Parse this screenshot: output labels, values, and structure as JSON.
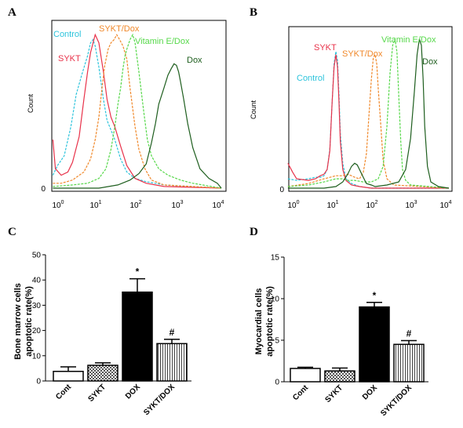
{
  "colors": {
    "control": "#2ec4dc",
    "sykt": "#e8324a",
    "sykt_dox": "#f0882a",
    "vitamin_e_dox": "#56d84a",
    "dox": "#1e5e1e",
    "bar_edge": "#000000"
  },
  "chart_data": [
    {
      "panel": "A",
      "type": "line",
      "ylabel": "Count",
      "y_zero_label": "0",
      "xscale": "log",
      "xticks": [
        {
          "base": "10",
          "exp": "0"
        },
        {
          "base": "10",
          "exp": "1"
        },
        {
          "base": "10",
          "exp": "2"
        },
        {
          "base": "10",
          "exp": "3"
        },
        {
          "base": "10",
          "exp": "4"
        }
      ],
      "series": [
        {
          "name": "Control",
          "color_key": "control",
          "x": [
            0.6,
            0.8,
            1.2,
            1.8,
            2.5,
            3.5,
            5,
            6,
            7,
            8,
            10,
            13,
            16,
            20,
            25,
            35,
            50,
            80,
            150,
            400,
            10000
          ],
          "y": [
            8,
            14,
            20,
            38,
            58,
            70,
            82,
            90,
            92,
            88,
            75,
            55,
            42,
            36,
            30,
            18,
            10,
            6,
            4,
            2,
            0
          ]
        },
        {
          "name": "SYKT",
          "color_key": "sykt",
          "x": [
            0.6,
            0.7,
            1,
            1.5,
            2,
            3,
            4,
            5,
            6,
            7,
            8,
            10,
            13,
            16,
            20,
            25,
            35,
            50,
            80,
            150,
            400,
            10000
          ],
          "y": [
            30,
            12,
            8,
            10,
            16,
            32,
            55,
            72,
            84,
            90,
            95,
            90,
            72,
            55,
            44,
            38,
            26,
            14,
            6,
            3,
            1,
            0
          ]
        },
        {
          "name": "SYKT/Dox",
          "color_key": "sykt_dox",
          "x": [
            0.6,
            1,
            2,
            4,
            6,
            8,
            10,
            12,
            14,
            17,
            20,
            24,
            28,
            33,
            40,
            50,
            60,
            80,
            100,
            140,
            200,
            400,
            10000
          ],
          "y": [
            3,
            3,
            5,
            10,
            18,
            30,
            44,
            62,
            76,
            86,
            90,
            92,
            95,
            92,
            88,
            80,
            62,
            38,
            24,
            12,
            5,
            2,
            0
          ]
        },
        {
          "name": "Vitamin E/Dox",
          "color_key": "vitamin_e_dox",
          "x": [
            0.6,
            2,
            5,
            10,
            15,
            20,
            25,
            30,
            35,
            40,
            45,
            50,
            60,
            70,
            80,
            100,
            130,
            160,
            200,
            300,
            500,
            1000,
            2000,
            10000
          ],
          "y": [
            1,
            2,
            3,
            6,
            12,
            24,
            38,
            52,
            62,
            74,
            82,
            86,
            92,
            95,
            90,
            72,
            48,
            30,
            20,
            12,
            8,
            5,
            3,
            0
          ]
        },
        {
          "name": "Dox",
          "color_key": "dox",
          "x": [
            0.6,
            2,
            10,
            30,
            60,
            100,
            150,
            200,
            250,
            300,
            400,
            500,
            600,
            700,
            800,
            900,
            1000,
            1200,
            1500,
            2000,
            3000,
            5000,
            8000,
            10000
          ],
          "y": [
            0,
            0,
            0,
            2,
            5,
            9,
            15,
            28,
            40,
            52,
            62,
            70,
            74,
            77,
            76,
            72,
            66,
            55,
            40,
            25,
            12,
            6,
            3,
            0
          ]
        }
      ]
    },
    {
      "panel": "B",
      "type": "line",
      "ylabel": "Count",
      "y_zero_label": "0",
      "xscale": "log",
      "xticks": [
        {
          "base": "10",
          "exp": "0"
        },
        {
          "base": "10",
          "exp": "1"
        },
        {
          "base": "10",
          "exp": "2"
        },
        {
          "base": "10",
          "exp": "3"
        },
        {
          "base": "10",
          "exp": "4"
        }
      ],
      "series": [
        {
          "name": "Control",
          "color_key": "control",
          "x": [
            0.6,
            1,
            2,
            3,
            4,
            5,
            6,
            7,
            8,
            9,
            10,
            11,
            12,
            13,
            15,
            18,
            25,
            40,
            80,
            10000
          ],
          "y": [
            6,
            5,
            6,
            7,
            7,
            8,
            12,
            25,
            55,
            80,
            88,
            82,
            60,
            35,
            16,
            6,
            3,
            1,
            0,
            0
          ]
        },
        {
          "name": "SYKT",
          "color_key": "sykt",
          "x": [
            0.6,
            0.8,
            1,
            2,
            3,
            4,
            5,
            6,
            7,
            8,
            9,
            10,
            11,
            12,
            13,
            15,
            18,
            25,
            40,
            80,
            10000
          ],
          "y": [
            16,
            10,
            6,
            5,
            6,
            8,
            9,
            12,
            24,
            55,
            78,
            86,
            78,
            55,
            30,
            12,
            5,
            2,
            1,
            0,
            0
          ]
        },
        {
          "name": "SYKT/Dox",
          "color_key": "sykt_dox",
          "x": [
            0.6,
            2,
            5,
            10,
            15,
            20,
            25,
            30,
            40,
            50,
            60,
            70,
            80,
            90,
            100,
            110,
            120,
            140,
            160,
            200,
            300,
            10000
          ],
          "y": [
            1,
            3,
            6,
            8,
            8,
            9,
            8,
            7,
            6,
            10,
            22,
            48,
            70,
            84,
            86,
            80,
            64,
            40,
            18,
            6,
            2,
            0
          ]
        },
        {
          "name": "Vitamin E/Dox",
          "color_key": "vitamin_e_dox",
          "x": [
            0.6,
            2,
            5,
            10,
            15,
            20,
            30,
            50,
            80,
            120,
            160,
            200,
            240,
            280,
            320,
            360,
            400,
            450,
            500,
            600,
            800,
            10000
          ],
          "y": [
            1,
            2,
            4,
            6,
            6,
            5,
            5,
            4,
            4,
            6,
            14,
            40,
            74,
            92,
            96,
            88,
            60,
            30,
            12,
            5,
            2,
            0
          ]
        },
        {
          "name": "Dox",
          "color_key": "dox",
          "x": [
            0.6,
            5,
            10,
            15,
            20,
            25,
            30,
            35,
            40,
            50,
            60,
            80,
            100,
            200,
            400,
            600,
            800,
            1000,
            1200,
            1400,
            1600,
            1800,
            2000,
            2400,
            3000,
            5000,
            10000
          ],
          "y": [
            0,
            0,
            1,
            4,
            9,
            14,
            16,
            15,
            12,
            7,
            3,
            2,
            1,
            2,
            4,
            12,
            32,
            62,
            86,
            96,
            92,
            70,
            40,
            14,
            4,
            1,
            0
          ]
        }
      ]
    },
    {
      "panel": "C",
      "type": "bar",
      "ylabel_lines": [
        "Bone marrow cells",
        "apoptotic rate(%)"
      ],
      "categories": [
        "Cont",
        "SYKT",
        "DOX",
        "SYKT/DOX"
      ],
      "values": [
        3.8,
        6.2,
        35.2,
        14.8
      ],
      "errors": [
        1.8,
        1.0,
        5.3,
        1.7
      ],
      "patterns": [
        "white",
        "checker",
        "black",
        "vstripe"
      ],
      "annotations": [
        "",
        "",
        "*",
        "#"
      ],
      "ylim": [
        0,
        50
      ],
      "yticks": [
        0,
        10,
        20,
        30,
        40,
        50
      ]
    },
    {
      "panel": "D",
      "type": "bar",
      "ylabel_lines": [
        "Myocardial cells",
        "apoptotic rate(%)"
      ],
      "categories": [
        "Cont",
        "SYKT",
        "DOX",
        "SYKT/DOX"
      ],
      "values": [
        1.6,
        1.3,
        9.0,
        4.5
      ],
      "errors": [
        0.15,
        0.35,
        0.55,
        0.45
      ],
      "patterns": [
        "white",
        "checker",
        "black",
        "vstripe"
      ],
      "annotations": [
        "",
        "",
        "*",
        "#"
      ],
      "ylim": [
        0,
        15
      ],
      "yticks": [
        0,
        5,
        10,
        15
      ]
    }
  ],
  "legend_labels": {
    "A": [
      {
        "key": "control",
        "text": "Control"
      },
      {
        "key": "sykt",
        "text": "SYKT"
      },
      {
        "key": "sykt_dox",
        "text": "SYKT/Dox"
      },
      {
        "key": "vitamin_e_dox",
        "text": "Vitamin E/Dox"
      },
      {
        "key": "dox",
        "text": "Dox"
      }
    ],
    "B": [
      {
        "key": "control",
        "text": "Control"
      },
      {
        "key": "sykt",
        "text": "SYKT"
      },
      {
        "key": "sykt_dox",
        "text": "SYKT/Dox"
      },
      {
        "key": "vitamin_e_dox",
        "text": "Vitamin E/Dox"
      },
      {
        "key": "dox",
        "text": "Dox"
      }
    ]
  }
}
